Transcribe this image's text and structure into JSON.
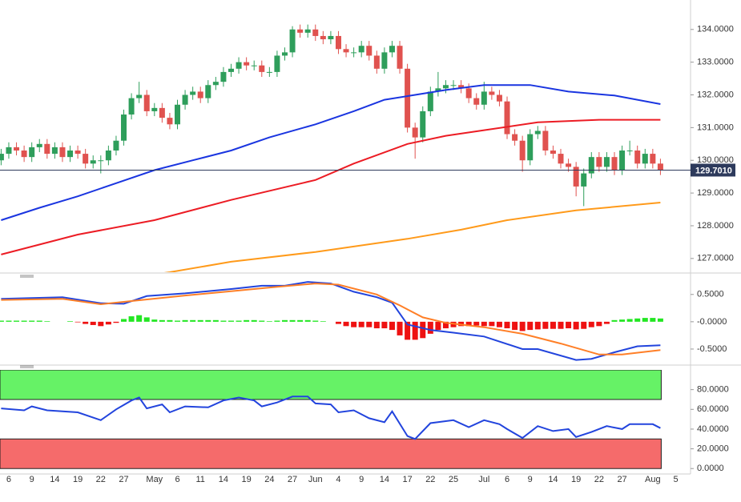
{
  "chart_data": [
    {
      "type": "candlestick",
      "up_color": "#2e9e5b",
      "down_color": "#e0524f",
      "open": [
        130.0,
        130.2,
        130.4,
        130.3,
        130.1,
        130.4,
        130.5,
        130.2,
        130.4,
        130.1,
        130.3,
        130.2,
        129.9,
        130.0,
        130.0,
        130.3,
        130.6,
        131.4,
        131.9,
        132.0,
        131.5,
        131.6,
        131.3,
        131.1,
        131.7,
        132.0,
        132.1,
        131.9,
        132.3,
        132.4,
        132.7,
        132.8,
        133.0,
        132.9,
        132.9,
        132.7,
        132.7,
        133.2,
        133.3,
        134.0,
        133.9,
        134.0,
        133.8,
        133.7,
        133.8,
        133.4,
        133.3,
        133.3,
        133.5,
        133.2,
        132.8,
        133.3,
        133.5,
        132.8,
        131.0,
        130.7,
        131.5,
        132.1,
        132.2,
        132.3,
        132.3,
        132.2,
        131.9,
        131.7,
        132.1,
        132.0,
        131.8,
        130.8,
        130.6,
        130.0,
        130.8,
        130.9,
        130.3,
        130.2,
        129.9,
        129.8,
        129.2,
        129.6,
        130.1,
        129.8,
        130.1,
        129.7,
        130.3,
        130.3,
        129.9,
        130.2,
        129.9
      ],
      "high": [
        130.35,
        130.55,
        130.55,
        130.45,
        130.55,
        130.65,
        130.65,
        130.55,
        130.55,
        130.45,
        130.45,
        130.35,
        130.15,
        130.15,
        130.45,
        130.75,
        131.55,
        132.05,
        132.4,
        132.15,
        131.75,
        131.75,
        131.45,
        131.85,
        132.15,
        132.25,
        132.25,
        132.45,
        132.55,
        132.85,
        132.95,
        133.15,
        133.15,
        133.05,
        133.05,
        132.85,
        133.35,
        133.45,
        134.1,
        134.15,
        134.15,
        134.15,
        133.95,
        133.95,
        133.95,
        133.55,
        133.45,
        133.65,
        133.65,
        133.35,
        133.45,
        133.65,
        133.65,
        132.95,
        131.15,
        131.65,
        132.25,
        132.7,
        132.45,
        132.45,
        132.45,
        132.35,
        132.05,
        132.4,
        132.25,
        132.15,
        131.95,
        130.95,
        130.75,
        130.95,
        131.05,
        131.05,
        130.45,
        130.35,
        130.05,
        129.95,
        129.75,
        130.25,
        130.25,
        130.25,
        130.25,
        130.45,
        130.6,
        130.45,
        130.35,
        130.35,
        130.05
      ],
      "low": [
        129.85,
        130.05,
        130.15,
        129.95,
        129.95,
        130.25,
        130.05,
        130.05,
        129.95,
        129.95,
        130.05,
        129.75,
        129.75,
        129.6,
        129.85,
        130.15,
        130.45,
        131.25,
        131.75,
        131.35,
        131.35,
        131.15,
        130.95,
        130.95,
        131.55,
        131.85,
        131.75,
        131.75,
        132.15,
        132.25,
        132.55,
        132.65,
        132.75,
        132.75,
        132.55,
        132.55,
        132.55,
        133.05,
        133.15,
        133.75,
        133.75,
        133.65,
        133.55,
        133.55,
        133.25,
        133.15,
        133.15,
        133.15,
        133.05,
        132.65,
        132.65,
        133.15,
        132.65,
        130.85,
        130.05,
        130.55,
        131.35,
        131.95,
        132.05,
        132.15,
        132.05,
        131.75,
        131.55,
        131.55,
        131.85,
        131.65,
        130.65,
        130.45,
        129.65,
        129.85,
        130.65,
        130.15,
        130.05,
        129.75,
        129.65,
        128.9,
        128.6,
        129.45,
        129.65,
        129.65,
        129.55,
        129.55,
        130.15,
        129.75,
        129.75,
        129.75,
        129.55
      ],
      "close": [
        130.2,
        130.4,
        130.3,
        130.1,
        130.4,
        130.5,
        130.2,
        130.4,
        130.1,
        130.3,
        130.2,
        129.9,
        130.0,
        130.0,
        130.3,
        130.6,
        131.4,
        131.9,
        132.0,
        131.5,
        131.6,
        131.3,
        131.1,
        131.7,
        132.0,
        132.1,
        131.9,
        132.3,
        132.4,
        132.7,
        132.8,
        133.0,
        132.9,
        132.9,
        132.7,
        132.7,
        133.2,
        133.3,
        134.0,
        133.9,
        134.0,
        133.8,
        133.7,
        133.8,
        133.4,
        133.3,
        133.3,
        133.5,
        133.2,
        132.8,
        133.3,
        133.5,
        132.8,
        131.0,
        130.7,
        131.5,
        132.1,
        132.2,
        132.3,
        132.3,
        132.2,
        131.9,
        131.7,
        132.1,
        132.0,
        131.8,
        130.8,
        130.6,
        130.0,
        130.8,
        130.9,
        130.3,
        130.2,
        129.9,
        129.8,
        129.2,
        129.6,
        130.1,
        129.8,
        130.1,
        129.7,
        130.3,
        130.3,
        129.9,
        130.2,
        129.9,
        129.7
      ],
      "series": [
        {
          "color": "#1a35e0",
          "x": [
            0,
            5,
            10,
            15,
            20,
            25,
            30,
            35,
            41,
            46,
            50,
            54,
            58,
            63,
            69,
            74,
            80,
            86
          ],
          "values": [
            128.17,
            128.55,
            128.9,
            129.3,
            129.7,
            130.0,
            130.3,
            130.7,
            131.1,
            131.5,
            131.85,
            132.0,
            132.15,
            132.3,
            132.3,
            132.1,
            131.98,
            131.72
          ]
        },
        {
          "color": "#ec1c24",
          "x": [
            0,
            10,
            20,
            30,
            41,
            46,
            53,
            58,
            63,
            70,
            78,
            86
          ],
          "values": [
            127.12,
            127.73,
            128.17,
            128.79,
            129.4,
            129.9,
            130.5,
            130.75,
            130.92,
            131.16,
            131.24,
            131.24
          ]
        },
        {
          "color": "#ff9a1a",
          "x": [
            18,
            22,
            30,
            41,
            53,
            60,
            66,
            75,
            86
          ],
          "values": [
            126.45,
            126.58,
            126.9,
            127.2,
            127.6,
            127.88,
            128.17,
            128.47,
            128.71
          ]
        }
      ],
      "ylim": [
        126.58,
        134.9
      ],
      "yticks": [
        {
          "value": 127,
          "label": "127.0000"
        },
        {
          "value": 128,
          "label": "128.0000"
        },
        {
          "value": 129,
          "label": "129.0000"
        },
        {
          "value": 130,
          "label": "130.0000"
        },
        {
          "value": 131,
          "label": "131.0000"
        },
        {
          "value": 132,
          "label": "132.0000"
        },
        {
          "value": 133,
          "label": "133.0000"
        },
        {
          "value": 134,
          "label": "134.0000"
        }
      ],
      "last_price": {
        "value": 129.701,
        "label": "129.7010"
      }
    },
    {
      "type": "macd",
      "series": [
        {
          "color": "#2244dd",
          "x": [
            0,
            8,
            13,
            16,
            19,
            24,
            30,
            34,
            37,
            40,
            43,
            46,
            49,
            51,
            53,
            56,
            59,
            63,
            68,
            70,
            75,
            77,
            80,
            83,
            86
          ],
          "values": [
            0.42,
            0.45,
            0.34,
            0.33,
            0.47,
            0.52,
            0.6,
            0.66,
            0.66,
            0.73,
            0.7,
            0.55,
            0.45,
            0.35,
            -0.05,
            -0.15,
            -0.2,
            -0.27,
            -0.5,
            -0.5,
            -0.7,
            -0.68,
            -0.56,
            -0.45,
            -0.43
          ]
        },
        {
          "color": "#ff7f27",
          "x": [
            0,
            8,
            13,
            17,
            24,
            30,
            36,
            41,
            44,
            49,
            52,
            55,
            58,
            63,
            68,
            73,
            78,
            81,
            86
          ],
          "values": [
            0.4,
            0.42,
            0.32,
            0.38,
            0.48,
            0.56,
            0.64,
            0.7,
            0.68,
            0.5,
            0.3,
            0.08,
            -0.02,
            -0.1,
            -0.22,
            -0.4,
            -0.6,
            -0.6,
            -0.52
          ]
        }
      ],
      "histogram": {
        "up_color": "#22e622",
        "down_color": "#ee1111",
        "values": [
          0.02,
          0.02,
          0.02,
          0.02,
          0.02,
          0.02,
          0.01,
          0.0,
          0.0,
          0.01,
          -0.01,
          -0.04,
          -0.06,
          -0.08,
          -0.05,
          -0.02,
          0.05,
          0.1,
          0.12,
          0.08,
          0.04,
          0.03,
          0.03,
          0.02,
          0.03,
          0.03,
          0.03,
          0.03,
          0.03,
          0.02,
          0.02,
          0.02,
          0.03,
          0.03,
          0.02,
          0.01,
          0.02,
          0.03,
          0.03,
          0.03,
          0.03,
          0.02,
          0.01,
          0.0,
          -0.04,
          -0.08,
          -0.1,
          -0.1,
          -0.1,
          -0.12,
          -0.12,
          -0.15,
          -0.25,
          -0.33,
          -0.33,
          -0.3,
          -0.22,
          -0.15,
          -0.12,
          -0.1,
          -0.08,
          -0.08,
          -0.07,
          -0.08,
          -0.08,
          -0.1,
          -0.12,
          -0.15,
          -0.17,
          -0.15,
          -0.14,
          -0.13,
          -0.13,
          -0.13,
          -0.12,
          -0.14,
          -0.13,
          -0.1,
          -0.08,
          -0.04,
          0.03,
          0.04,
          0.05,
          0.06,
          0.07,
          0.07,
          0.06
        ]
      },
      "ylim": [
        -0.75,
        0.79
      ],
      "yticks": [
        {
          "value": 0.5,
          "label": "0.5000"
        },
        {
          "value": 0,
          "label": "-0.0000"
        },
        {
          "value": -0.5,
          "label": "-0.5000"
        }
      ]
    },
    {
      "type": "line",
      "categories": [
        null,
        "6",
        null,
        null,
        "9",
        null,
        null,
        "14",
        null,
        null,
        "19",
        null,
        null,
        "22",
        null,
        null,
        "27",
        null,
        null,
        null,
        "May",
        null,
        null,
        "6",
        null,
        null,
        "11",
        null,
        null,
        "14",
        null,
        null,
        "19",
        null,
        null,
        "24",
        null,
        null,
        "27",
        null,
        null,
        "Jun",
        null,
        null,
        "4",
        null,
        null,
        "9",
        null,
        null,
        "14",
        null,
        null,
        "17",
        null,
        null,
        "22",
        null,
        null,
        "25",
        null,
        null,
        null,
        "Jul",
        null,
        null,
        "6",
        null,
        null,
        "9",
        null,
        null,
        "14",
        null,
        null,
        "19",
        null,
        null,
        "22",
        null,
        null,
        "27",
        null,
        null,
        null,
        "Aug",
        null,
        null,
        "5"
      ],
      "series": [
        {
          "color": "#2244dd",
          "x": [
            0,
            3,
            4,
            6,
            10,
            13,
            15,
            17,
            18,
            19,
            21,
            22,
            24,
            27,
            29,
            31,
            33,
            34,
            36,
            38,
            40,
            41,
            43,
            44,
            46,
            48,
            50,
            51,
            53,
            54,
            56,
            59,
            61,
            63,
            65,
            66,
            68,
            70,
            72,
            74,
            75,
            77,
            79,
            81,
            82,
            85,
            86
          ],
          "values": [
            61,
            59,
            63,
            59,
            57,
            49,
            60,
            69,
            72,
            61,
            65,
            57,
            63,
            62,
            69,
            72,
            69,
            63,
            67,
            73,
            73,
            66,
            65,
            57,
            59,
            51,
            47,
            58,
            33,
            30,
            46,
            49,
            42,
            49,
            45,
            40,
            31,
            43,
            38,
            40,
            32,
            37,
            43,
            40,
            45,
            45,
            41
          ]
        }
      ],
      "bands": [
        {
          "from": 70,
          "to": 100,
          "color": "#66f266"
        },
        {
          "from": 0,
          "to": 30,
          "color": "#f56b6b"
        }
      ],
      "ylim": [
        -5.5,
        100
      ],
      "yticks": [
        {
          "value": 0,
          "label": "0.0000"
        },
        {
          "value": 20,
          "label": "20.0000"
        },
        {
          "value": 40,
          "label": "40.0000"
        },
        {
          "value": 60,
          "label": "60.0000"
        },
        {
          "value": 80,
          "label": "80.0000"
        }
      ]
    }
  ]
}
